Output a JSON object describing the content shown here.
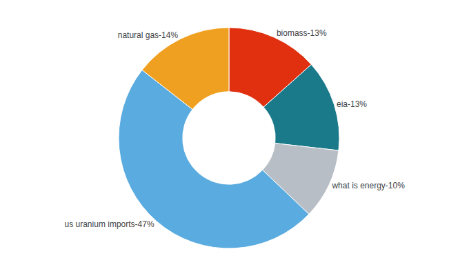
{
  "chart_data": {
    "type": "pie",
    "categories": [
      "biomass",
      "eia",
      "what is energy",
      "us uranium imports",
      "natural gas"
    ],
    "values": [
      13,
      13,
      10,
      47,
      14
    ],
    "value_labels": [
      "biomass-13%",
      "eia-13%",
      "what is energy-10%",
      "us uranium imports-47%",
      "natural gas-14%"
    ],
    "colors": [
      "#e03010",
      "#1a7a8a",
      "#b8bec5",
      "#5aabdf",
      "#f0a020"
    ],
    "data_labels": true,
    "legend": false
  }
}
